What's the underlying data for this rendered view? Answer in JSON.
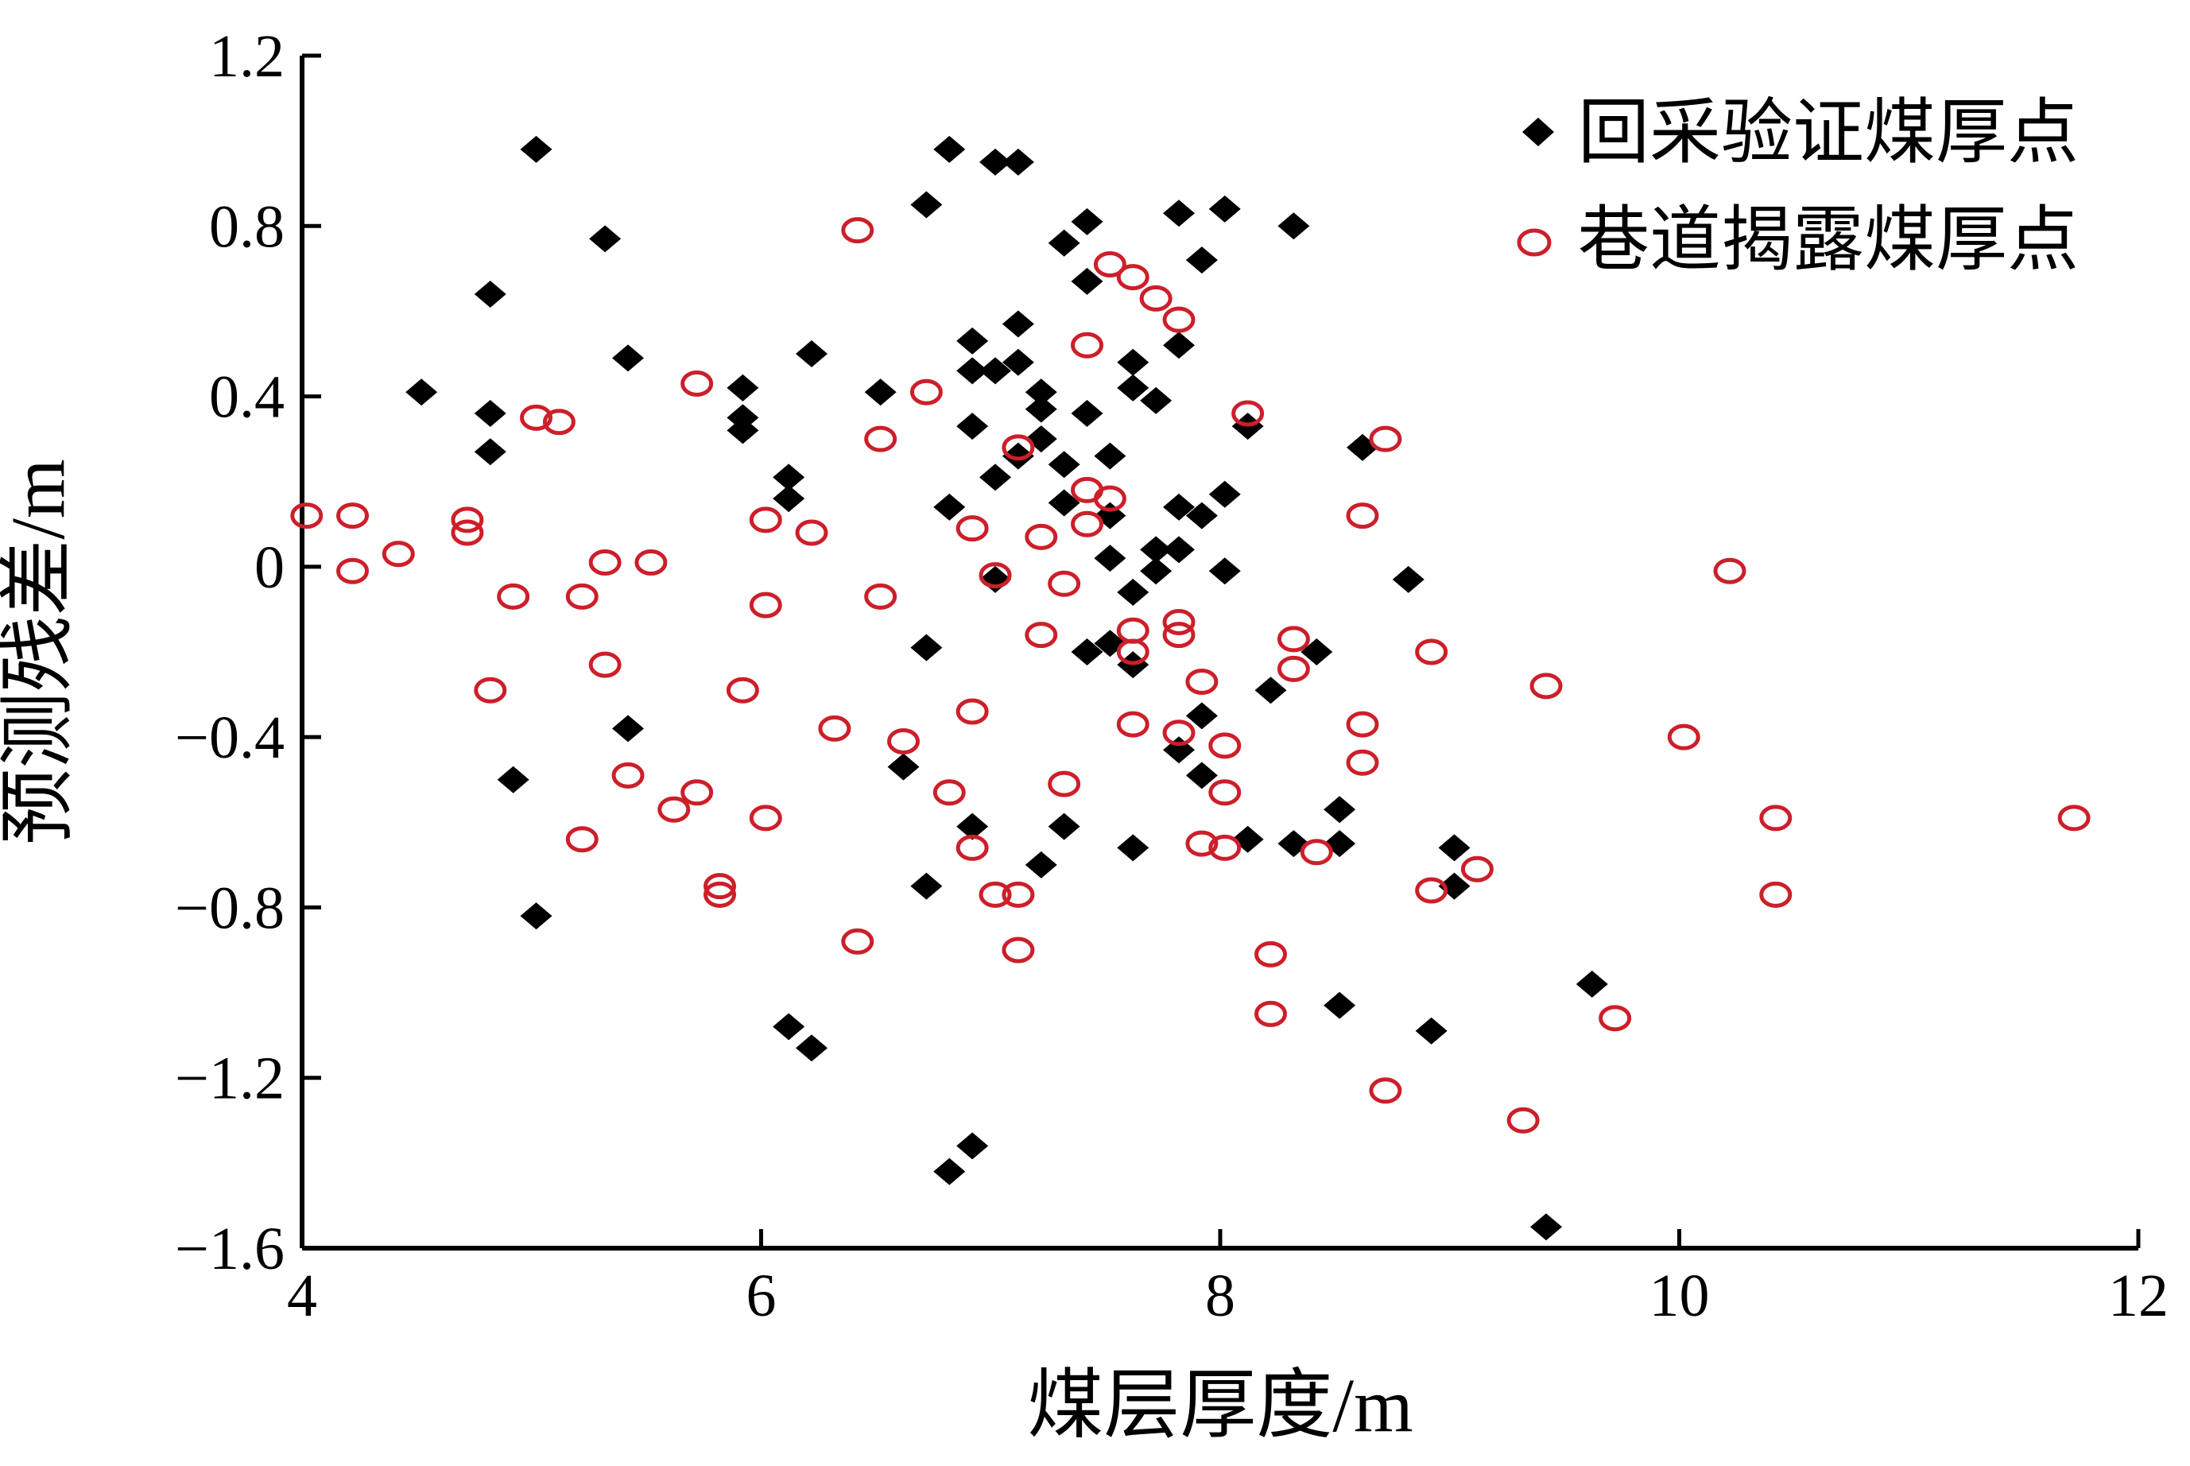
{
  "chart_data": {
    "type": "scatter",
    "title": "",
    "xlabel": "煤层厚度/m",
    "ylabel": "预测残差/m",
    "xlim": [
      4,
      12
    ],
    "ylim": [
      -1.6,
      1.2
    ],
    "xticks": [
      4,
      6,
      8,
      10,
      12
    ],
    "yticks": [
      1.2,
      0.8,
      0.4,
      0,
      -0.4,
      -0.8,
      -1.2,
      -1.6
    ],
    "xtick_labels": [
      "4",
      "6",
      "8",
      "10",
      "12"
    ],
    "ytick_labels": [
      "1.2",
      "0.8",
      "0.4",
      "0",
      "−0.4",
      "−0.8",
      "−1.2",
      "−1.6"
    ],
    "grid": false,
    "legend_position": "top-right",
    "series": [
      {
        "name": "回采验证煤厚点",
        "marker": "diamond",
        "color": "#000000",
        "points": [
          [
            4.52,
            0.41
          ],
          [
            4.82,
            0.64
          ],
          [
            4.82,
            0.36
          ],
          [
            4.82,
            0.27
          ],
          [
            5.02,
            0.98
          ],
          [
            5.32,
            0.77
          ],
          [
            5.42,
            0.49
          ],
          [
            5.92,
            0.42
          ],
          [
            5.92,
            0.35
          ],
          [
            5.92,
            0.32
          ],
          [
            6.22,
            0.5
          ],
          [
            6.12,
            0.21
          ],
          [
            6.12,
            0.16
          ],
          [
            6.52,
            0.41
          ],
          [
            6.72,
            0.85
          ],
          [
            6.82,
            0.98
          ],
          [
            7.02,
            0.95
          ],
          [
            7.12,
            0.95
          ],
          [
            6.92,
            0.53
          ],
          [
            7.12,
            0.57
          ],
          [
            6.92,
            0.46
          ],
          [
            7.02,
            0.46
          ],
          [
            7.12,
            0.48
          ],
          [
            6.92,
            0.33
          ],
          [
            7.22,
            0.41
          ],
          [
            7.22,
            0.37
          ],
          [
            7.32,
            0.76
          ],
          [
            7.42,
            0.81
          ],
          [
            7.42,
            0.67
          ],
          [
            7.42,
            0.36
          ],
          [
            7.22,
            0.3
          ],
          [
            7.12,
            0.26
          ],
          [
            7.02,
            0.21
          ],
          [
            7.32,
            0.24
          ],
          [
            7.52,
            0.26
          ],
          [
            7.82,
            0.83
          ],
          [
            7.92,
            0.72
          ],
          [
            8.02,
            0.84
          ],
          [
            8.32,
            0.8
          ],
          [
            7.82,
            0.52
          ],
          [
            7.62,
            0.48
          ],
          [
            7.62,
            0.42
          ],
          [
            7.72,
            0.39
          ],
          [
            6.82,
            0.14
          ],
          [
            7.32,
            0.15
          ],
          [
            7.52,
            0.12
          ],
          [
            7.82,
            0.14
          ],
          [
            7.92,
            0.12
          ],
          [
            8.02,
            0.17
          ],
          [
            8.12,
            0.33
          ],
          [
            8.62,
            0.28
          ],
          [
            7.52,
            0.02
          ],
          [
            7.72,
            0.04
          ],
          [
            7.72,
            -0.01
          ],
          [
            7.82,
            0.04
          ],
          [
            8.02,
            -0.01
          ],
          [
            7.02,
            -0.03
          ],
          [
            7.62,
            -0.06
          ],
          [
            8.82,
            -0.03
          ],
          [
            6.72,
            -0.19
          ],
          [
            7.42,
            -0.2
          ],
          [
            7.52,
            -0.18
          ],
          [
            7.62,
            -0.23
          ],
          [
            8.42,
            -0.2
          ],
          [
            8.22,
            -0.29
          ],
          [
            7.92,
            -0.35
          ],
          [
            7.82,
            -0.43
          ],
          [
            7.92,
            -0.49
          ],
          [
            5.42,
            -0.38
          ],
          [
            4.92,
            -0.5
          ],
          [
            6.62,
            -0.47
          ],
          [
            8.52,
            -0.57
          ],
          [
            6.92,
            -0.61
          ],
          [
            7.32,
            -0.61
          ],
          [
            8.12,
            -0.64
          ],
          [
            8.32,
            -0.65
          ],
          [
            8.52,
            -0.65
          ],
          [
            7.62,
            -0.66
          ],
          [
            9.02,
            -0.66
          ],
          [
            7.22,
            -0.7
          ],
          [
            6.72,
            -0.75
          ],
          [
            9.02,
            -0.75
          ],
          [
            5.02,
            -0.82
          ],
          [
            9.62,
            -0.98
          ],
          [
            8.52,
            -1.03
          ],
          [
            8.92,
            -1.09
          ],
          [
            6.12,
            -1.08
          ],
          [
            6.22,
            -1.13
          ],
          [
            6.92,
            -1.36
          ],
          [
            6.82,
            -1.42
          ],
          [
            9.42,
            -1.55
          ]
        ]
      },
      {
        "name": "巷道揭露煤厚点",
        "marker": "circle-open",
        "color": "#cc1f2a",
        "points": [
          [
            4.02,
            0.12
          ],
          [
            4.22,
            0.12
          ],
          [
            4.42,
            0.03
          ],
          [
            4.22,
            -0.01
          ],
          [
            4.72,
            0.11
          ],
          [
            4.72,
            0.08
          ],
          [
            5.02,
            0.35
          ],
          [
            5.12,
            0.34
          ],
          [
            5.72,
            0.43
          ],
          [
            6.42,
            0.79
          ],
          [
            6.52,
            0.3
          ],
          [
            6.72,
            0.41
          ],
          [
            7.52,
            0.71
          ],
          [
            7.62,
            0.68
          ],
          [
            7.72,
            0.63
          ],
          [
            7.82,
            0.58
          ],
          [
            7.42,
            0.52
          ],
          [
            8.12,
            0.36
          ],
          [
            8.72,
            0.3
          ],
          [
            7.12,
            0.28
          ],
          [
            7.42,
            0.18
          ],
          [
            7.52,
            0.16
          ],
          [
            7.42,
            0.1
          ],
          [
            6.92,
            0.09
          ],
          [
            6.02,
            0.11
          ],
          [
            6.22,
            0.08
          ],
          [
            7.22,
            0.07
          ],
          [
            8.62,
            0.12
          ],
          [
            5.32,
            0.01
          ],
          [
            5.52,
            0.01
          ],
          [
            4.92,
            -0.07
          ],
          [
            5.22,
            -0.07
          ],
          [
            6.02,
            -0.09
          ],
          [
            6.52,
            -0.07
          ],
          [
            7.02,
            -0.02
          ],
          [
            7.32,
            -0.04
          ],
          [
            10.22,
            -0.01
          ],
          [
            7.22,
            -0.16
          ],
          [
            7.62,
            -0.15
          ],
          [
            7.82,
            -0.13
          ],
          [
            7.82,
            -0.16
          ],
          [
            7.62,
            -0.2
          ],
          [
            8.32,
            -0.17
          ],
          [
            8.92,
            -0.2
          ],
          [
            5.32,
            -0.23
          ],
          [
            8.32,
            -0.24
          ],
          [
            4.82,
            -0.29
          ],
          [
            5.92,
            -0.29
          ],
          [
            7.92,
            -0.27
          ],
          [
            9.42,
            -0.28
          ],
          [
            6.92,
            -0.34
          ],
          [
            6.32,
            -0.38
          ],
          [
            7.62,
            -0.37
          ],
          [
            7.82,
            -0.39
          ],
          [
            6.62,
            -0.41
          ],
          [
            8.02,
            -0.42
          ],
          [
            8.62,
            -0.37
          ],
          [
            10.02,
            -0.4
          ],
          [
            8.62,
            -0.46
          ],
          [
            5.42,
            -0.49
          ],
          [
            5.72,
            -0.53
          ],
          [
            5.62,
            -0.57
          ],
          [
            6.82,
            -0.53
          ],
          [
            7.32,
            -0.51
          ],
          [
            8.02,
            -0.53
          ],
          [
            6.02,
            -0.59
          ],
          [
            5.22,
            -0.64
          ],
          [
            6.92,
            -0.66
          ],
          [
            7.92,
            -0.65
          ],
          [
            8.02,
            -0.66
          ],
          [
            8.42,
            -0.67
          ],
          [
            10.42,
            -0.59
          ],
          [
            11.72,
            -0.59
          ],
          [
            9.12,
            -0.71
          ],
          [
            5.82,
            -0.75
          ],
          [
            5.82,
            -0.77
          ],
          [
            7.02,
            -0.77
          ],
          [
            7.12,
            -0.77
          ],
          [
            8.92,
            -0.76
          ],
          [
            10.42,
            -0.77
          ],
          [
            6.42,
            -0.88
          ],
          [
            7.12,
            -0.9
          ],
          [
            8.22,
            -0.91
          ],
          [
            8.22,
            -1.05
          ],
          [
            9.72,
            -1.06
          ],
          [
            8.72,
            -1.23
          ],
          [
            9.32,
            -1.3
          ]
        ]
      }
    ]
  }
}
